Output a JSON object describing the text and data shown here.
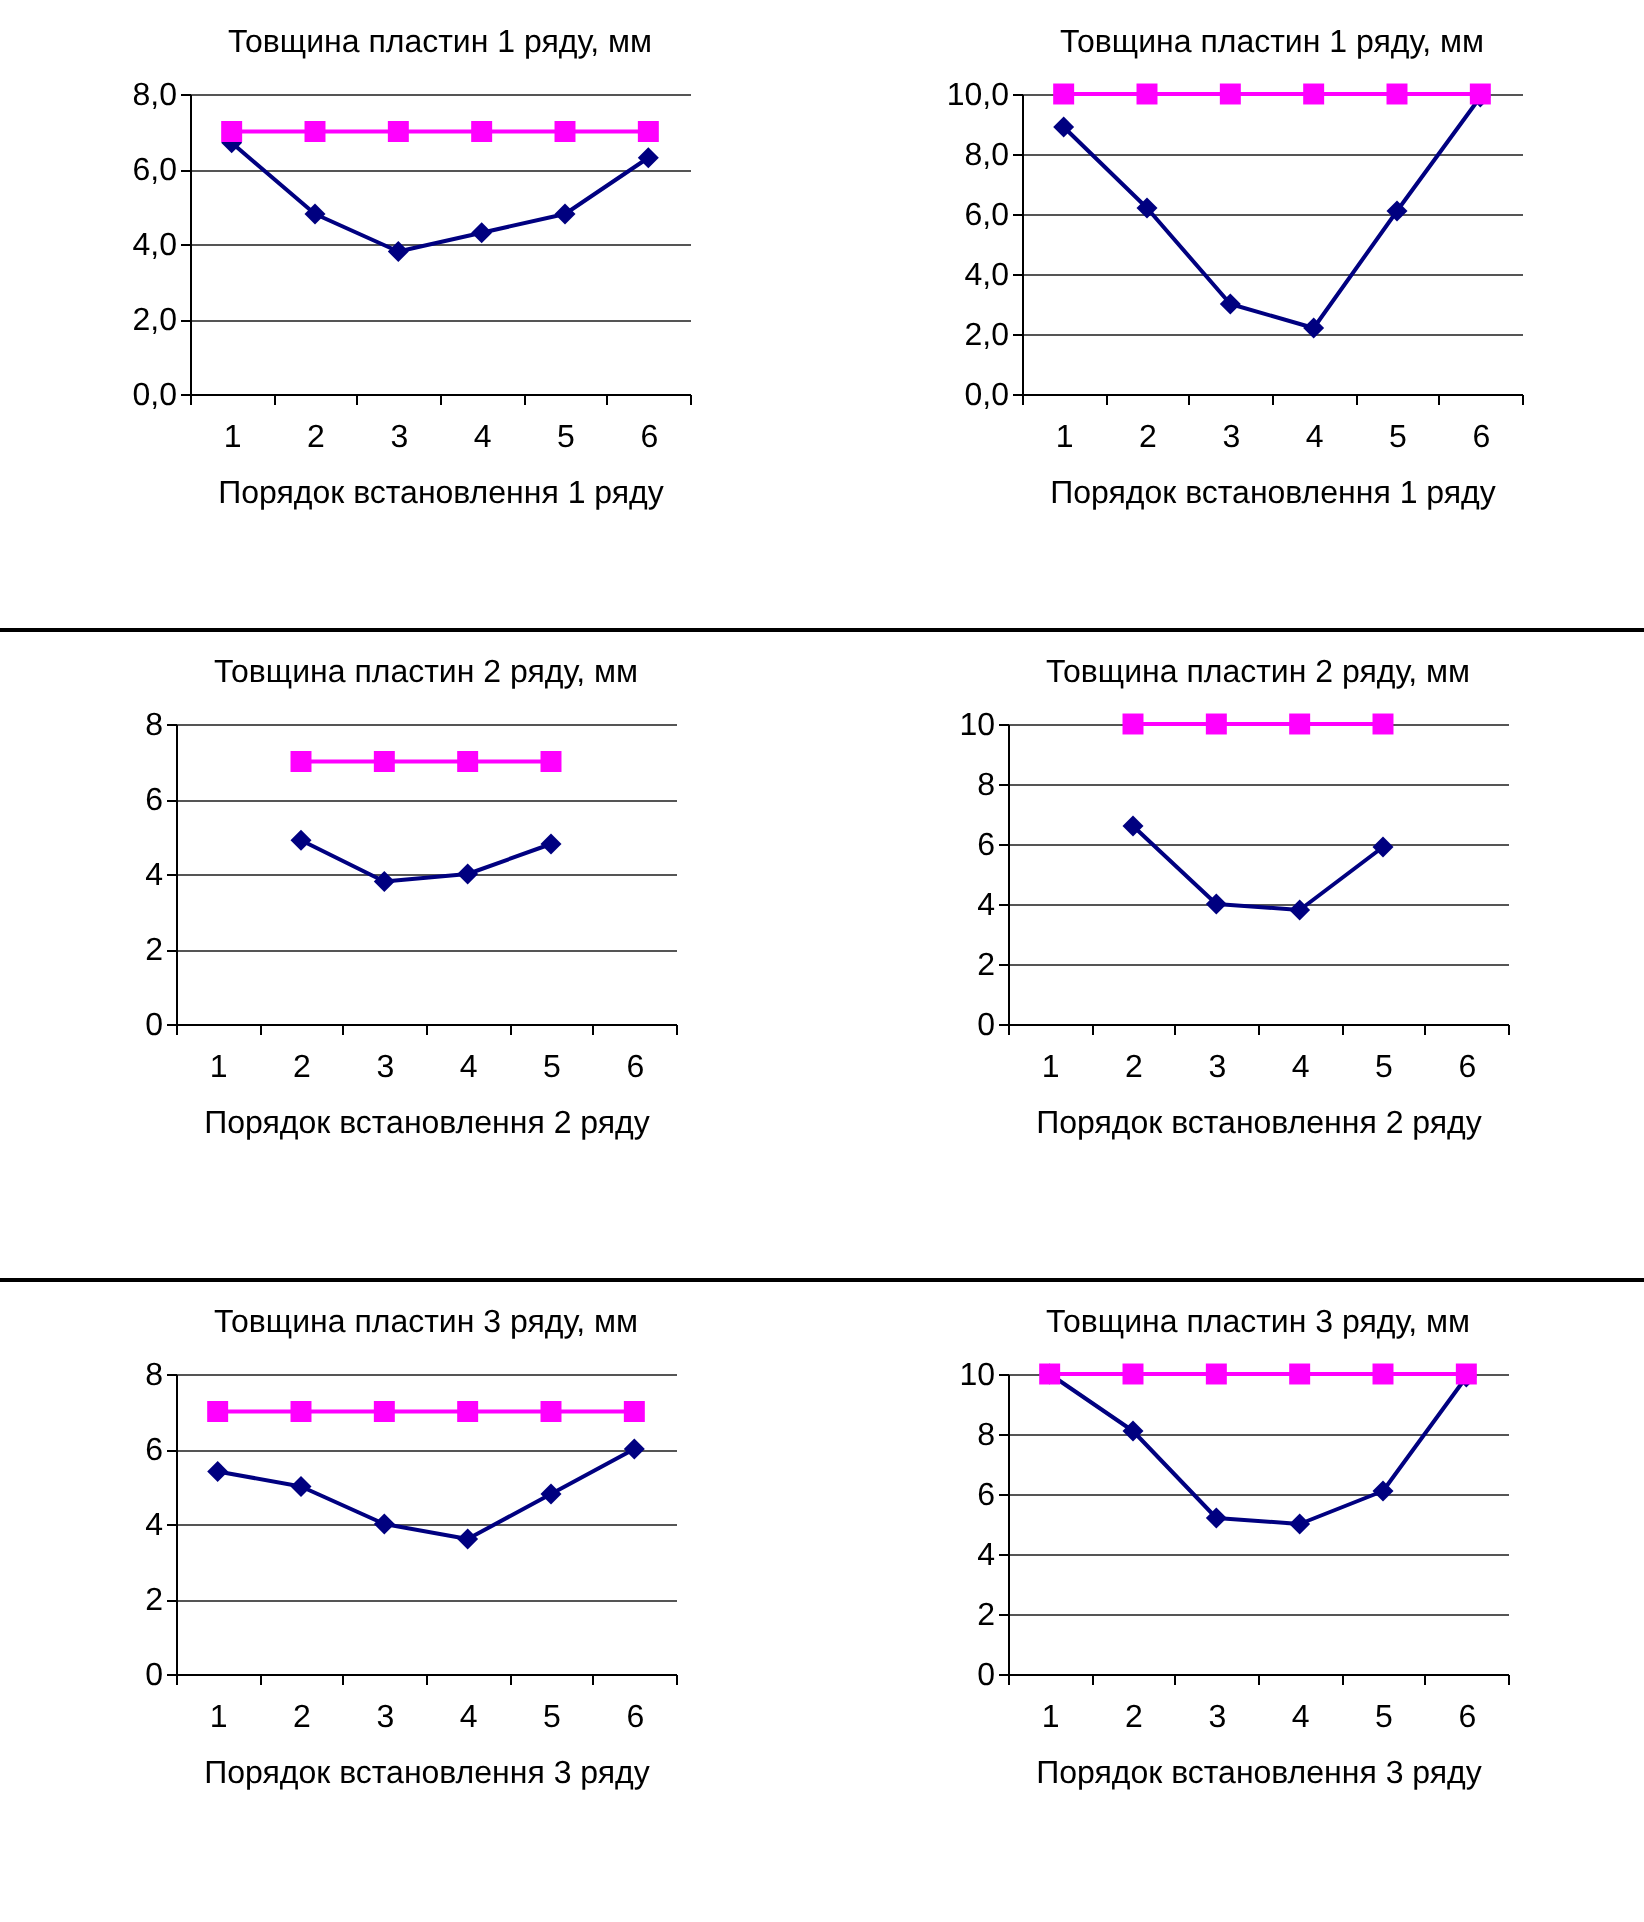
{
  "chart_data": [
    {
      "type": "line",
      "title": "Товщина пластин 1 ряду, мм",
      "xlabel": "Порядок встановлення 1 ряду",
      "categories": [
        "1",
        "2",
        "3",
        "4",
        "5",
        "6"
      ],
      "ylim": [
        0,
        8
      ],
      "yticks": [
        {
          "value": 0,
          "label": "0,0"
        },
        {
          "value": 2,
          "label": "2,0"
        },
        {
          "value": 4,
          "label": "4,0"
        },
        {
          "value": 6,
          "label": "6,0"
        },
        {
          "value": 8,
          "label": "8,0"
        }
      ],
      "grid": "y",
      "series": [
        {
          "color": "#000080",
          "marker": "diamond",
          "values": [
            6.7,
            4.8,
            3.8,
            4.3,
            4.8,
            6.3
          ]
        },
        {
          "color": "#ff00ff",
          "marker": "square",
          "values": [
            7,
            7,
            7,
            7,
            7,
            7
          ]
        }
      ]
    },
    {
      "type": "line",
      "title": "Товщина пластин 1 ряду, мм",
      "xlabel": "Порядок встановлення 1 ряду",
      "categories": [
        "1",
        "2",
        "3",
        "4",
        "5",
        "6"
      ],
      "ylim": [
        0,
        10
      ],
      "yticks": [
        {
          "value": 0,
          "label": "0,0"
        },
        {
          "value": 2,
          "label": "2,0"
        },
        {
          "value": 4,
          "label": "4,0"
        },
        {
          "value": 6,
          "label": "6,0"
        },
        {
          "value": 8,
          "label": "8,0"
        },
        {
          "value": 10,
          "label": "10,0"
        }
      ],
      "grid": "y",
      "series": [
        {
          "color": "#000080",
          "marker": "diamond",
          "values": [
            8.9,
            6.2,
            3.0,
            2.2,
            6.1,
            9.9
          ]
        },
        {
          "color": "#ff00ff",
          "marker": "square",
          "values": [
            10,
            10,
            10,
            10,
            10,
            10
          ]
        }
      ]
    },
    {
      "type": "line",
      "title": "Товщина пластин 2 ряду, мм",
      "xlabel": "Порядок встановлення 2 ряду",
      "categories": [
        "1",
        "2",
        "3",
        "4",
        "5",
        "6"
      ],
      "ylim": [
        0,
        8
      ],
      "yticks": [
        0,
        2,
        4,
        6,
        8
      ],
      "grid": "y",
      "series": [
        {
          "color": "#000080",
          "marker": "diamond",
          "values": [
            null,
            4.9,
            3.8,
            4.0,
            4.8,
            null
          ]
        },
        {
          "color": "#ff00ff",
          "marker": "square",
          "values": [
            null,
            7,
            7,
            7,
            7,
            null
          ]
        }
      ]
    },
    {
      "type": "line",
      "title": "Товщина пластин 2 ряду, мм",
      "xlabel": "Порядок встановлення 2 ряду",
      "categories": [
        "1",
        "2",
        "3",
        "4",
        "5",
        "6"
      ],
      "ylim": [
        0,
        10
      ],
      "yticks": [
        0,
        2,
        4,
        6,
        8,
        10
      ],
      "grid": "y",
      "series": [
        {
          "color": "#000080",
          "marker": "diamond",
          "values": [
            null,
            6.6,
            4.0,
            3.8,
            5.9,
            null
          ]
        },
        {
          "color": "#ff00ff",
          "marker": "square",
          "values": [
            null,
            10,
            10,
            10,
            10,
            null
          ]
        }
      ]
    },
    {
      "type": "line",
      "title": "Товщина пластин 3 ряду, мм",
      "xlabel": "Порядок встановлення 3 ряду",
      "categories": [
        "1",
        "2",
        "3",
        "4",
        "5",
        "6"
      ],
      "ylim": [
        0,
        8
      ],
      "yticks": [
        0,
        2,
        4,
        6,
        8
      ],
      "grid": "y",
      "series": [
        {
          "color": "#000080",
          "marker": "diamond",
          "values": [
            5.4,
            5.0,
            4.0,
            3.6,
            4.8,
            6.0
          ]
        },
        {
          "color": "#ff00ff",
          "marker": "square",
          "values": [
            7,
            7,
            7,
            7,
            7,
            7
          ]
        }
      ]
    },
    {
      "type": "line",
      "title": "Товщина пластин 3 ряду, мм",
      "xlabel": "Порядок встановлення 3 ряду",
      "categories": [
        "1",
        "2",
        "3",
        "4",
        "5",
        "6"
      ],
      "ylim": [
        0,
        10
      ],
      "yticks": [
        0,
        2,
        4,
        6,
        8,
        10
      ],
      "grid": "y",
      "series": [
        {
          "color": "#000080",
          "marker": "diamond",
          "values": [
            10,
            8.1,
            5.2,
            5.0,
            6.1,
            9.9
          ]
        },
        {
          "color": "#ff00ff",
          "marker": "square",
          "values": [
            10,
            10,
            10,
            10,
            10,
            10
          ]
        }
      ]
    }
  ]
}
